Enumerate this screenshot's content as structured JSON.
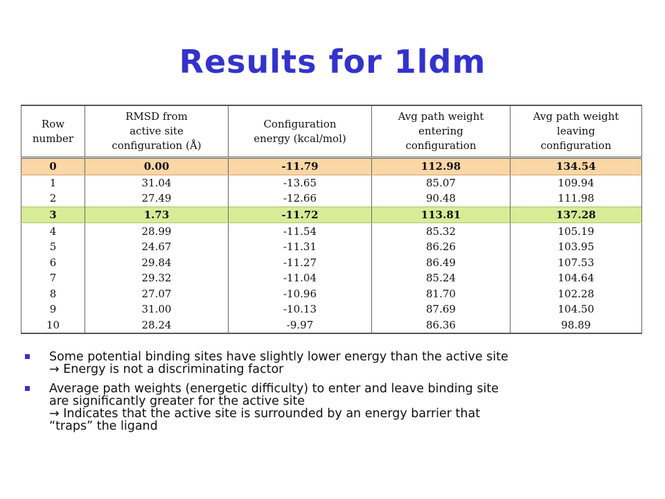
{
  "title": "Results for 1ldm",
  "table": {
    "headers": [
      [
        "Row",
        "number"
      ],
      [
        "RMSD from",
        "active site",
        "configuration (Å)"
      ],
      [
        "Configuration",
        "energy (kcal/mol)"
      ],
      [
        "Avg path weight",
        "entering",
        "configuration"
      ],
      [
        "Avg path weight",
        "leaving",
        "configuration"
      ]
    ],
    "rows": [
      [
        "0",
        "0.00",
        "-11.79",
        "112.98",
        "134.54"
      ],
      [
        "1",
        "31.04",
        "-13.65",
        "85.07",
        "109.94"
      ],
      [
        "2",
        "27.49",
        "-12.66",
        "90.48",
        "111.98"
      ],
      [
        "3",
        "1.73",
        "-11.72",
        "113.81",
        "137.28"
      ],
      [
        "4",
        "28.99",
        "-11.54",
        "85.32",
        "105.19"
      ],
      [
        "5",
        "24.67",
        "-11.31",
        "86.26",
        "103.95"
      ],
      [
        "6",
        "29.84",
        "-11.27",
        "86.49",
        "107.53"
      ],
      [
        "7",
        "29.32",
        "-11.04",
        "85.24",
        "104.64"
      ],
      [
        "8",
        "27.07",
        "-10.96",
        "81.70",
        "102.28"
      ],
      [
        "9",
        "31.00",
        "-10.13",
        "87.69",
        "104.50"
      ],
      [
        "10",
        "28.24",
        "-9.97",
        "86.36",
        "98.89"
      ]
    ],
    "highlight_colors": {
      "0": "#fcd7a6",
      "3": "#d8ec98"
    }
  },
  "bullets": [
    {
      "lines": [
        "Some potential binding sites have slightly lower energy than the active site",
        "→ Energy is not a discriminating factor"
      ]
    },
    {
      "lines": [
        "Average path weights (energetic difficulty) to enter and leave binding site",
        "are significantly greater for the active site",
        "→ Indicates that the active site is surrounded by an energy barrier that",
        "“traps” the ligand"
      ]
    }
  ],
  "colors": {
    "title": "#3333cc",
    "bullet": "#3333cc"
  }
}
